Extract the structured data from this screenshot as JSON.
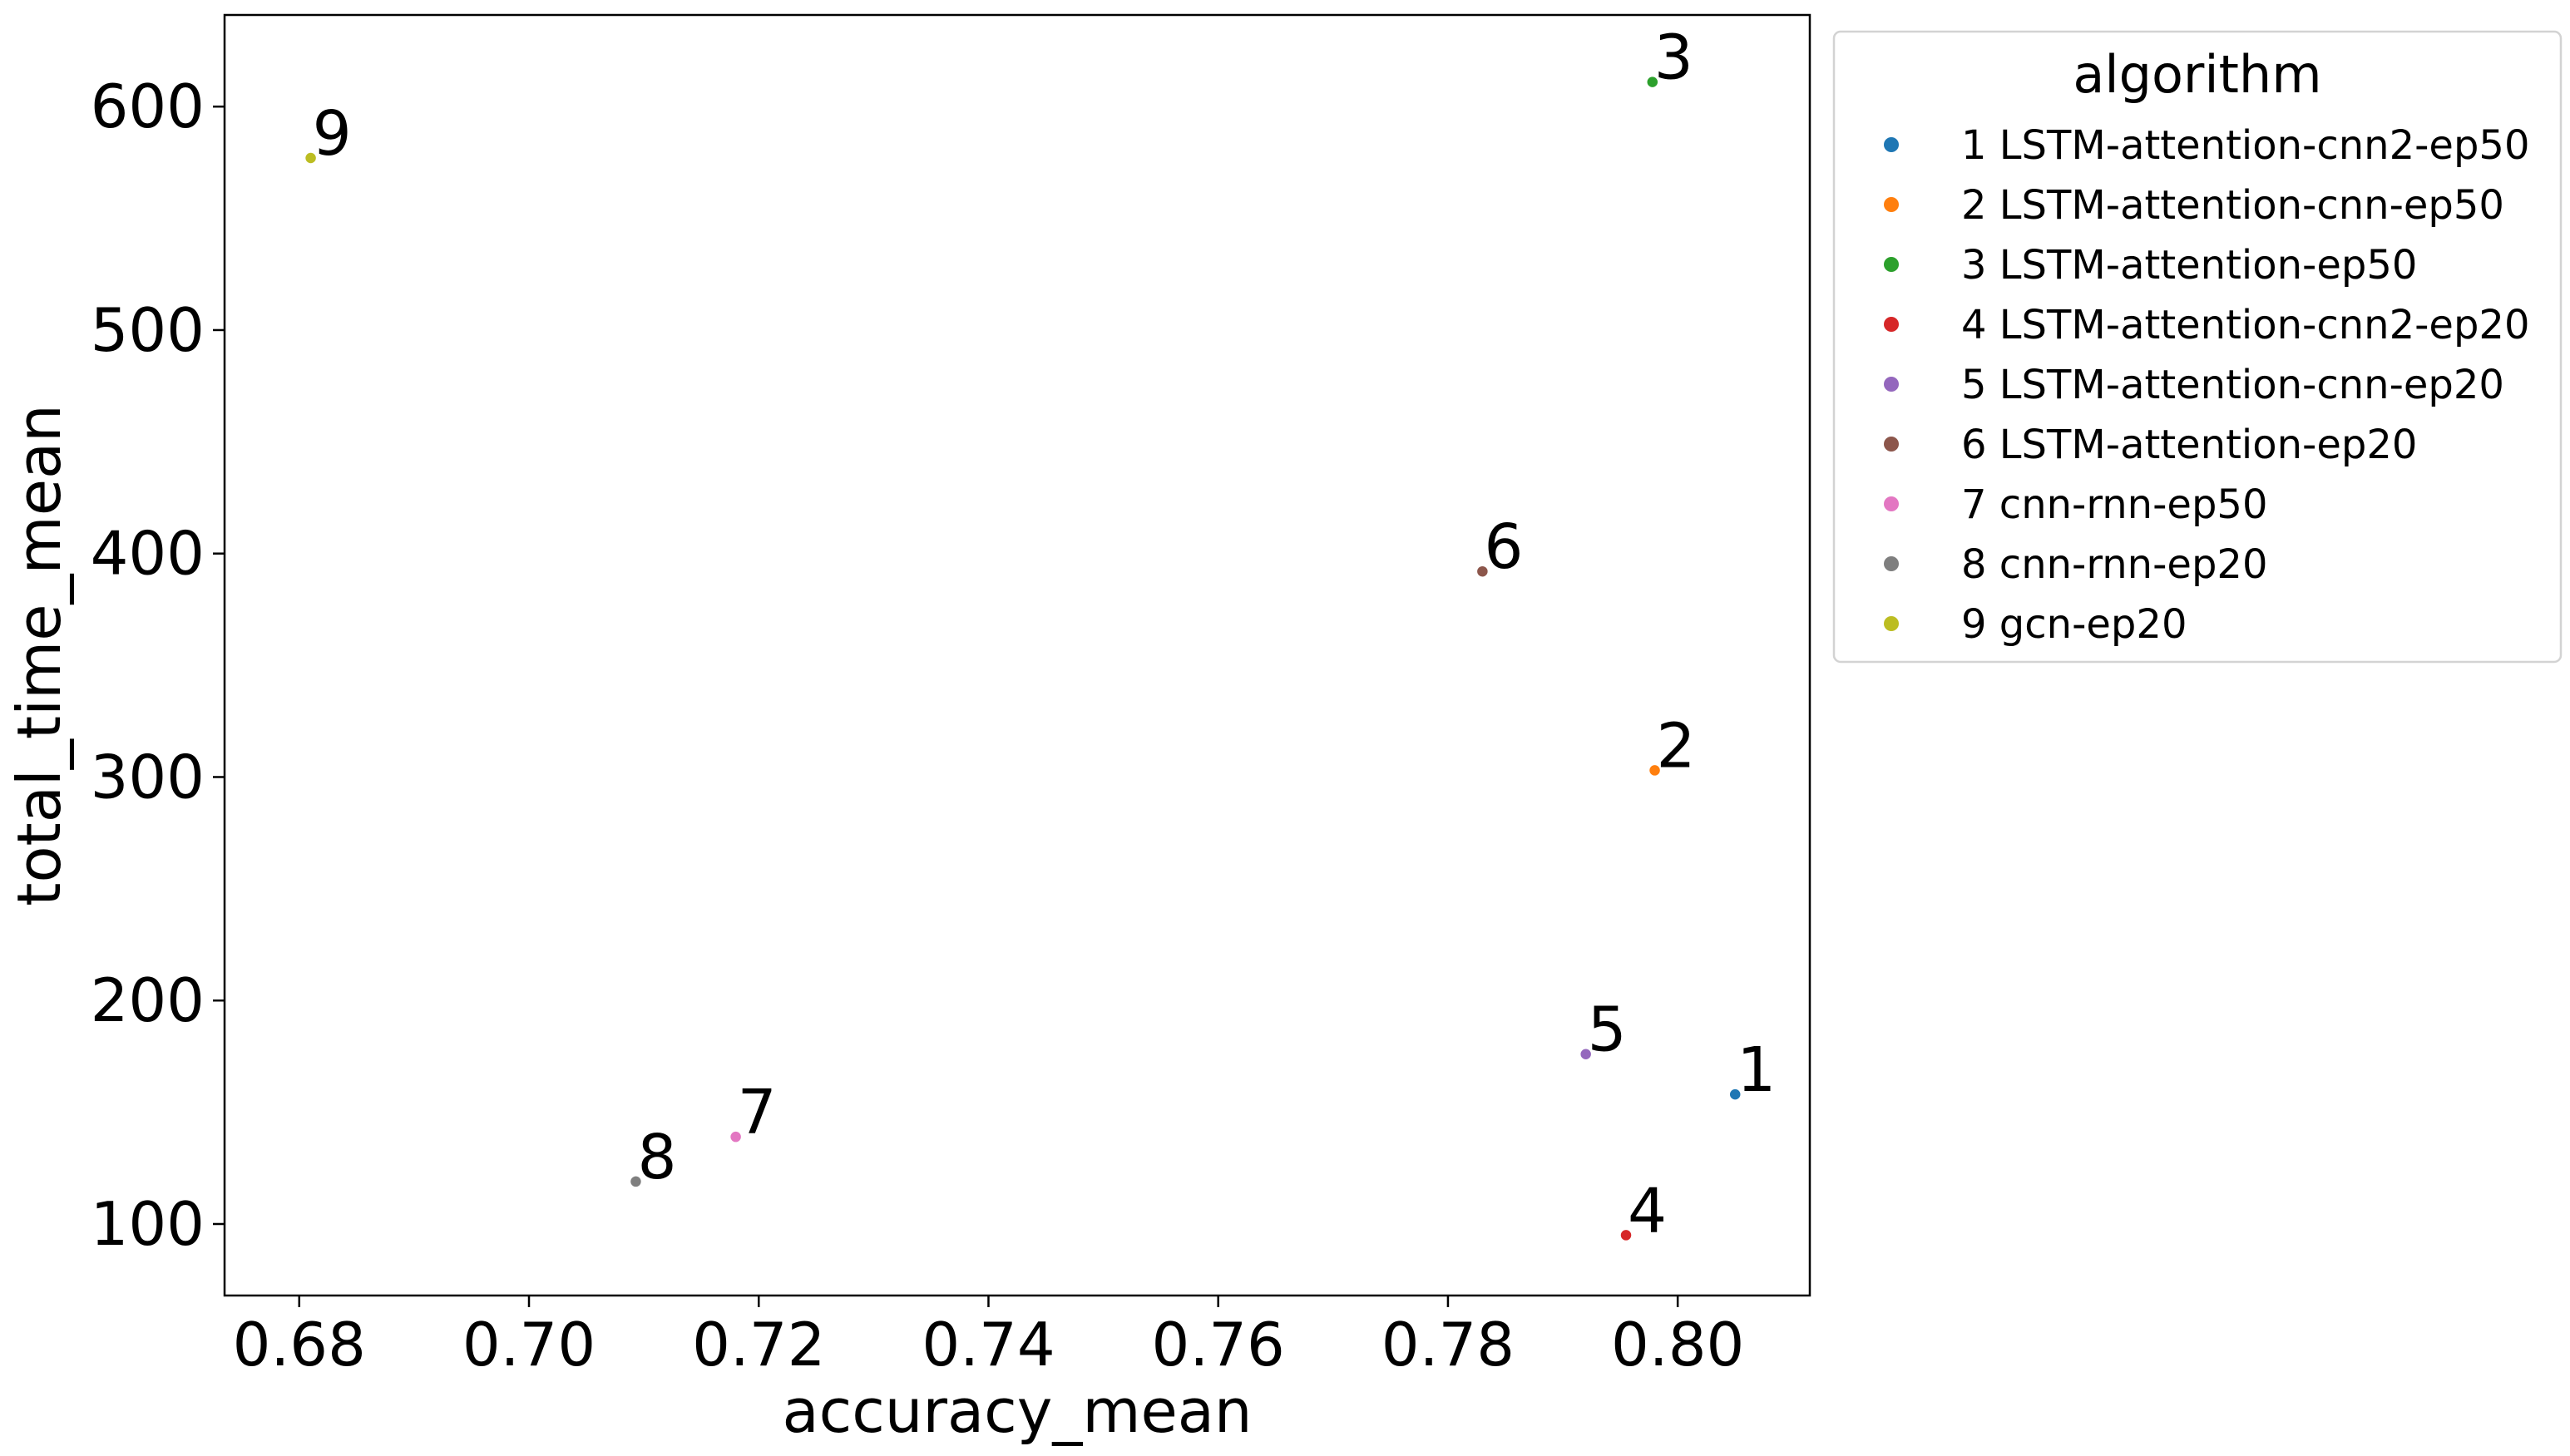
{
  "chart_data": {
    "type": "scatter",
    "title": "",
    "xlabel": "accuracy_mean",
    "ylabel": "total_time_mean",
    "xlim": [
      0.6735,
      0.8115
    ],
    "ylim": [
      68,
      641
    ],
    "xticks": [
      "0.68",
      "0.70",
      "0.72",
      "0.74",
      "0.76",
      "0.78",
      "0.80"
    ],
    "yticks": [
      "100",
      "200",
      "300",
      "400",
      "500",
      "600"
    ],
    "grid": false,
    "legend": {
      "title": "algorithm",
      "placement": "outside-right",
      "entries": [
        "1 LSTM-attention-cnn2-ep50",
        "2 LSTM-attention-cnn-ep50",
        "3 LSTM-attention-ep50",
        "4 LSTM-attention-cnn2-ep20",
        "5 LSTM-attention-cnn-ep20",
        "6 LSTM-attention-ep20",
        "7 cnn-rnn-ep50",
        "8 cnn-rnn-ep20",
        "9 gcn-ep20"
      ]
    },
    "series": [
      {
        "name": "1 LSTM-attention-cnn2-ep50",
        "label": "1",
        "color": "#1f77b4",
        "x": 0.805,
        "y": 158
      },
      {
        "name": "2 LSTM-attention-cnn-ep50",
        "label": "2",
        "color": "#ff7f0e",
        "x": 0.798,
        "y": 303
      },
      {
        "name": "3 LSTM-attention-ep50",
        "label": "3",
        "color": "#2ca02c",
        "x": 0.7978,
        "y": 611
      },
      {
        "name": "4 LSTM-attention-cnn2-ep20",
        "label": "4",
        "color": "#d62728",
        "x": 0.7955,
        "y": 95
      },
      {
        "name": "5 LSTM-attention-cnn-ep20",
        "label": "5",
        "color": "#9467bd",
        "x": 0.792,
        "y": 176
      },
      {
        "name": "6 LSTM-attention-ep20",
        "label": "6",
        "color": "#8c564b",
        "x": 0.783,
        "y": 392
      },
      {
        "name": "7 cnn-rnn-ep50",
        "label": "7",
        "color": "#e377c2",
        "x": 0.718,
        "y": 139
      },
      {
        "name": "8 cnn-rnn-ep20",
        "label": "8",
        "color": "#7f7f7f",
        "x": 0.7093,
        "y": 119
      },
      {
        "name": "9 gcn-ep20",
        "label": "9",
        "color": "#bcbd22",
        "x": 0.681,
        "y": 577
      }
    ]
  }
}
